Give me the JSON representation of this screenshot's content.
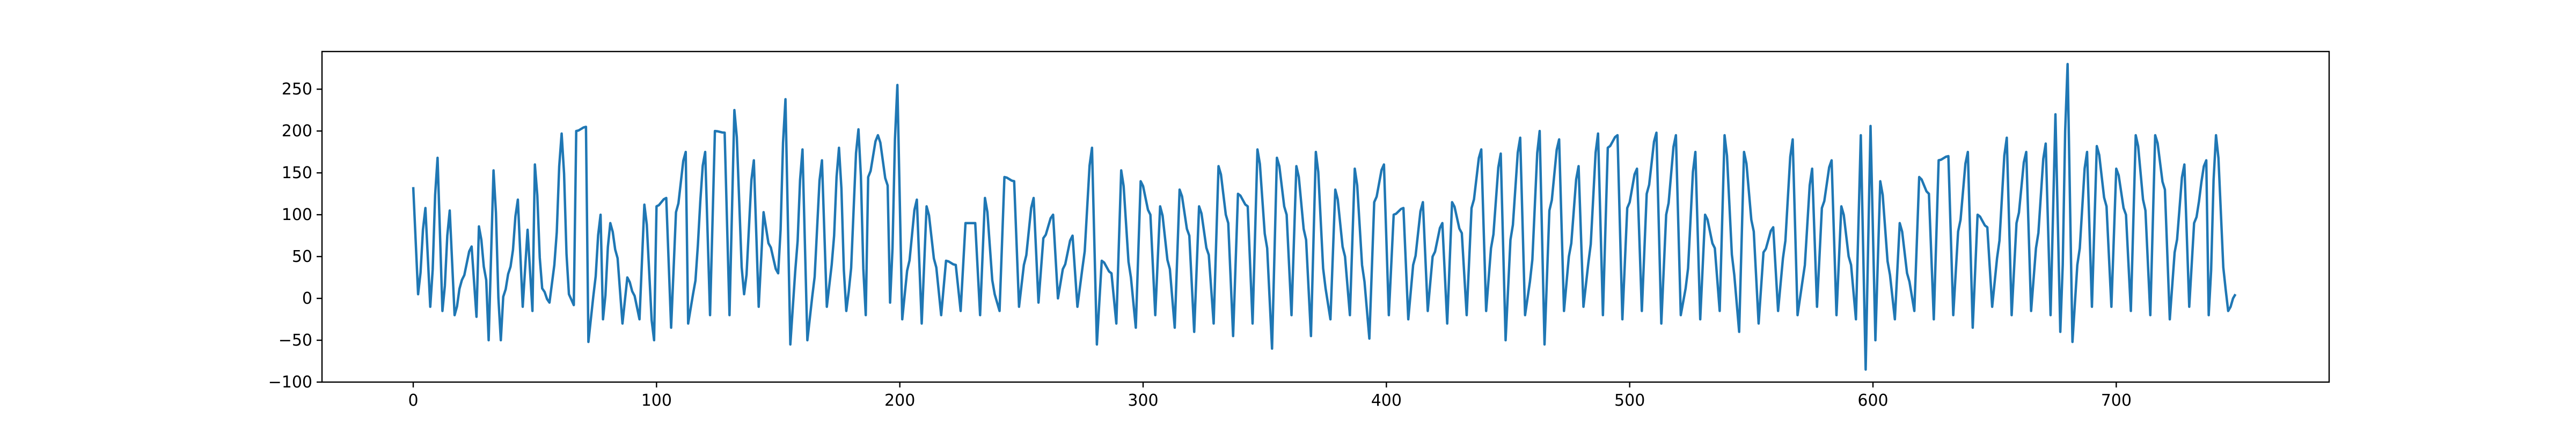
{
  "chart_data": {
    "type": "line",
    "title": "",
    "xlabel": "",
    "ylabel": "",
    "xlim": [
      -37.5,
      787.5
    ],
    "ylim": [
      -100,
      295
    ],
    "x_ticks": [
      0,
      100,
      200,
      300,
      400,
      500,
      600,
      700
    ],
    "y_ticks": [
      -100,
      -50,
      0,
      50,
      100,
      150,
      200,
      250
    ],
    "grid": false,
    "legend": "none",
    "line_color": "#1f77b4",
    "n_points": 750,
    "x_start": 0,
    "x_step": 1,
    "approx_peaks": [
      [
        0,
        133
      ],
      [
        5,
        108
      ],
      [
        10,
        168
      ],
      [
        15,
        105
      ],
      [
        20,
        22
      ],
      [
        24,
        62
      ],
      [
        27,
        86
      ],
      [
        30,
        22
      ],
      [
        33,
        153
      ],
      [
        37,
        2
      ],
      [
        40,
        38
      ],
      [
        43,
        118
      ],
      [
        47,
        82
      ],
      [
        50,
        160
      ],
      [
        53,
        12
      ],
      [
        58,
        40
      ],
      [
        61,
        197
      ],
      [
        64,
        5
      ],
      [
        67,
        200
      ],
      [
        71,
        205
      ],
      [
        74,
        2
      ],
      [
        77,
        100
      ],
      [
        81,
        90
      ],
      [
        84,
        48
      ],
      [
        88,
        25
      ],
      [
        91,
        3
      ],
      [
        95,
        112
      ],
      [
        100,
        110
      ],
      [
        104,
        120
      ],
      [
        108,
        103
      ],
      [
        112,
        175
      ],
      [
        115,
        5
      ],
      [
        120,
        175
      ],
      [
        124,
        200
      ],
      [
        128,
        198
      ],
      [
        132,
        225
      ],
      [
        136,
        5
      ],
      [
        140,
        165
      ],
      [
        144,
        103
      ],
      [
        146,
        66
      ],
      [
        150,
        30
      ],
      [
        153,
        238
      ],
      [
        157,
        32
      ],
      [
        160,
        178
      ],
      [
        164,
        2
      ],
      [
        168,
        165
      ],
      [
        172,
        40
      ],
      [
        175,
        180
      ],
      [
        179,
        8
      ],
      [
        183,
        202
      ],
      [
        187,
        145
      ],
      [
        191,
        195
      ],
      [
        195,
        135
      ],
      [
        199,
        255
      ],
      [
        203,
        33
      ],
      [
        207,
        118
      ],
      [
        211,
        110
      ],
      [
        215,
        37
      ],
      [
        219,
        45
      ],
      [
        223,
        40
      ],
      [
        227,
        90
      ],
      [
        231,
        90
      ],
      [
        235,
        120
      ],
      [
        239,
        5
      ],
      [
        243,
        145
      ],
      [
        247,
        140
      ],
      [
        251,
        40
      ],
      [
        255,
        120
      ],
      [
        259,
        72
      ],
      [
        263,
        100
      ],
      [
        267,
        35
      ],
      [
        271,
        75
      ],
      [
        275,
        35
      ],
      [
        279,
        180
      ],
      [
        283,
        45
      ],
      [
        287,
        30
      ],
      [
        291,
        153
      ],
      [
        295,
        25
      ],
      [
        299,
        140
      ],
      [
        303,
        100
      ],
      [
        307,
        110
      ],
      [
        311,
        35
      ],
      [
        315,
        130
      ],
      [
        319,
        75
      ],
      [
        323,
        110
      ],
      [
        327,
        52
      ],
      [
        331,
        158
      ],
      [
        335,
        90
      ],
      [
        339,
        125
      ],
      [
        343,
        110
      ],
      [
        347,
        178
      ],
      [
        351,
        60
      ],
      [
        355,
        168
      ],
      [
        359,
        100
      ],
      [
        363,
        158
      ],
      [
        367,
        70
      ],
      [
        371,
        175
      ],
      [
        375,
        12
      ],
      [
        379,
        130
      ],
      [
        383,
        50
      ],
      [
        387,
        155
      ],
      [
        391,
        20
      ],
      [
        395,
        115
      ],
      [
        399,
        160
      ],
      [
        403,
        100
      ],
      [
        407,
        108
      ],
      [
        411,
        40
      ],
      [
        415,
        115
      ],
      [
        419,
        50
      ],
      [
        423,
        90
      ],
      [
        427,
        115
      ],
      [
        431,
        78
      ],
      [
        435,
        108
      ],
      [
        439,
        178
      ],
      [
        443,
        60
      ],
      [
        447,
        173
      ],
      [
        451,
        70
      ],
      [
        455,
        192
      ],
      [
        459,
        20
      ],
      [
        463,
        200
      ],
      [
        467,
        105
      ],
      [
        471,
        190
      ],
      [
        475,
        50
      ],
      [
        479,
        158
      ],
      [
        483,
        42
      ],
      [
        487,
        197
      ],
      [
        491,
        180
      ],
      [
        495,
        195
      ],
      [
        499,
        108
      ],
      [
        503,
        155
      ],
      [
        507,
        125
      ],
      [
        511,
        198
      ],
      [
        515,
        100
      ],
      [
        519,
        195
      ],
      [
        523,
        12
      ],
      [
        527,
        175
      ],
      [
        531,
        100
      ],
      [
        535,
        60
      ],
      [
        539,
        195
      ],
      [
        543,
        28
      ],
      [
        547,
        175
      ],
      [
        551,
        80
      ],
      [
        555,
        55
      ],
      [
        559,
        85
      ],
      [
        563,
        48
      ],
      [
        567,
        190
      ],
      [
        571,
        20
      ],
      [
        575,
        155
      ],
      [
        579,
        108
      ],
      [
        583,
        165
      ],
      [
        587,
        110
      ],
      [
        591,
        40
      ],
      [
        595,
        195
      ],
      [
        599,
        206
      ],
      [
        603,
        140
      ],
      [
        607,
        28
      ],
      [
        611,
        90
      ],
      [
        615,
        20
      ],
      [
        619,
        145
      ],
      [
        623,
        125
      ],
      [
        627,
        165
      ],
      [
        631,
        170
      ],
      [
        635,
        80
      ],
      [
        639,
        175
      ],
      [
        643,
        100
      ],
      [
        647,
        85
      ],
      [
        651,
        48
      ],
      [
        655,
        192
      ],
      [
        659,
        90
      ],
      [
        663,
        175
      ],
      [
        667,
        60
      ],
      [
        671,
        185
      ],
      [
        675,
        220
      ],
      [
        680,
        280
      ],
      [
        684,
        40
      ],
      [
        688,
        175
      ],
      [
        692,
        182
      ],
      [
        696,
        110
      ],
      [
        700,
        155
      ],
      [
        704,
        100
      ],
      [
        708,
        195
      ],
      [
        712,
        105
      ],
      [
        716,
        195
      ],
      [
        720,
        130
      ],
      [
        724,
        55
      ],
      [
        728,
        160
      ],
      [
        732,
        90
      ],
      [
        737,
        165
      ],
      [
        741,
        195
      ],
      [
        745,
        10
      ],
      [
        749,
        5
      ]
    ],
    "approx_troughs": [
      [
        2,
        5
      ],
      [
        7,
        -10
      ],
      [
        12,
        -15
      ],
      [
        17,
        -20
      ],
      [
        26,
        -22
      ],
      [
        31,
        -50
      ],
      [
        36,
        -50
      ],
      [
        45,
        -10
      ],
      [
        49,
        -15
      ],
      [
        56,
        -5
      ],
      [
        66,
        -8
      ],
      [
        72,
        -52
      ],
      [
        78,
        -25
      ],
      [
        86,
        -30
      ],
      [
        93,
        -25
      ],
      [
        99,
        -50
      ],
      [
        106,
        -35
      ],
      [
        113,
        -30
      ],
      [
        122,
        -20
      ],
      [
        130,
        -20
      ],
      [
        142,
        -10
      ],
      [
        155,
        -55
      ],
      [
        162,
        -50
      ],
      [
        170,
        -10
      ],
      [
        178,
        -15
      ],
      [
        186,
        -20
      ],
      [
        196,
        -5
      ],
      [
        201,
        -25
      ],
      [
        209,
        -30
      ],
      [
        217,
        -20
      ],
      [
        225,
        -15
      ],
      [
        233,
        -20
      ],
      [
        241,
        -15
      ],
      [
        249,
        -10
      ],
      [
        257,
        -5
      ],
      [
        265,
        0
      ],
      [
        273,
        -10
      ],
      [
        281,
        -55
      ],
      [
        289,
        -30
      ],
      [
        297,
        -35
      ],
      [
        305,
        -20
      ],
      [
        313,
        -35
      ],
      [
        321,
        -40
      ],
      [
        329,
        -30
      ],
      [
        337,
        -45
      ],
      [
        345,
        -30
      ],
      [
        353,
        -60
      ],
      [
        361,
        -20
      ],
      [
        369,
        -45
      ],
      [
        377,
        -25
      ],
      [
        385,
        -20
      ],
      [
        393,
        -48
      ],
      [
        401,
        -20
      ],
      [
        409,
        -25
      ],
      [
        417,
        -15
      ],
      [
        425,
        -30
      ],
      [
        433,
        -20
      ],
      [
        441,
        -15
      ],
      [
        449,
        -50
      ],
      [
        457,
        -20
      ],
      [
        465,
        -55
      ],
      [
        473,
        -15
      ],
      [
        481,
        -10
      ],
      [
        489,
        -20
      ],
      [
        497,
        -25
      ],
      [
        505,
        -15
      ],
      [
        513,
        -30
      ],
      [
        521,
        -20
      ],
      [
        529,
        -25
      ],
      [
        537,
        -15
      ],
      [
        545,
        -40
      ],
      [
        553,
        -30
      ],
      [
        561,
        -15
      ],
      [
        569,
        -20
      ],
      [
        577,
        -10
      ],
      [
        585,
        -20
      ],
      [
        593,
        -25
      ],
      [
        597,
        -85
      ],
      [
        601,
        -50
      ],
      [
        609,
        -25
      ],
      [
        617,
        -15
      ],
      [
        625,
        -25
      ],
      [
        633,
        -20
      ],
      [
        641,
        -35
      ],
      [
        649,
        -10
      ],
      [
        657,
        -20
      ],
      [
        665,
        -15
      ],
      [
        673,
        -20
      ],
      [
        677,
        -40
      ],
      [
        682,
        -52
      ],
      [
        690,
        -10
      ],
      [
        698,
        -10
      ],
      [
        706,
        -15
      ],
      [
        714,
        -20
      ],
      [
        722,
        -25
      ],
      [
        730,
        -10
      ],
      [
        738,
        -20
      ],
      [
        746,
        -15
      ]
    ]
  }
}
